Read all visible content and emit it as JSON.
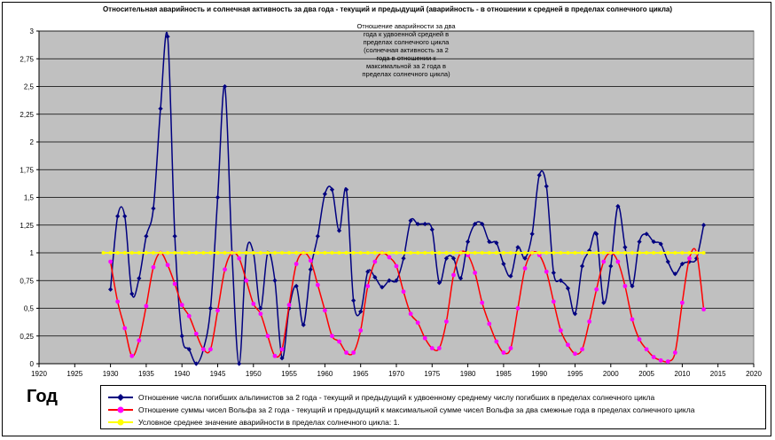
{
  "chart_data": {
    "type": "line",
    "title": "Относительная аварийность и солнечная активность за два года - текущий и предыдущий (аварийность - в отношении к средней в пределах солнечного цикла)",
    "annotation": "Отношение аварийности за два года к удвоенной средней в пределах солнечного цикла (солнечная активность за 2 года в отношении к максимальной за 2 года в пределах солнечного цикла)",
    "xlabel": "Год",
    "ylabel": "",
    "xlim": [
      1920,
      2020
    ],
    "ylim": [
      0,
      3
    ],
    "x_ticks": [
      "1920",
      "1925",
      "1930",
      "1935",
      "1940",
      "1945",
      "1950",
      "1955",
      "1960",
      "1965",
      "1970",
      "1975",
      "1980",
      "1985",
      "1990",
      "1995",
      "2000",
      "2005",
      "2010",
      "2015",
      "2020"
    ],
    "y_ticks": [
      "0",
      "0,25",
      "0,5",
      "0,75",
      "1",
      "1,25",
      "1,5",
      "1,75",
      "2",
      "2,25",
      "2,5",
      "2,75",
      "3"
    ],
    "grid": "horizontal",
    "plot_background": "#c0c0c0",
    "legend_position": "bottom",
    "series": [
      {
        "name": "Отношение числа погибших альпинистов за 2 года - текущий и предыдущий к удвоенному среднему числу погибших в пределах солнечного цикла",
        "color": "#000080",
        "marker": "diamond",
        "x": [
          1930,
          1931,
          1932,
          1933,
          1934,
          1935,
          1936,
          1937,
          1938,
          1939,
          1940,
          1941,
          1942,
          1943,
          1944,
          1945,
          1946,
          1947,
          1948,
          1949,
          1950,
          1951,
          1952,
          1953,
          1954,
          1955,
          1956,
          1957,
          1958,
          1959,
          1960,
          1961,
          1962,
          1963,
          1964,
          1965,
          1966,
          1967,
          1968,
          1969,
          1970,
          1971,
          1972,
          1973,
          1974,
          1975,
          1976,
          1977,
          1978,
          1979,
          1980,
          1981,
          1982,
          1983,
          1984,
          1985,
          1986,
          1987,
          1988,
          1989,
          1990,
          1991,
          1992,
          1993,
          1994,
          1995,
          1996,
          1997,
          1998,
          1999,
          2000,
          2001,
          2002,
          2003,
          2004,
          2005,
          2006,
          2007,
          2008,
          2009,
          2010,
          2011,
          2012,
          2013
        ],
        "y": [
          0.67,
          1.33,
          1.33,
          0.63,
          0.77,
          1.15,
          1.4,
          2.3,
          2.95,
          1.15,
          0.25,
          0.13,
          0.0,
          0.13,
          0.5,
          1.5,
          2.5,
          1.0,
          0.0,
          1.0,
          1.0,
          0.5,
          1.0,
          0.75,
          0.05,
          0.5,
          0.7,
          0.35,
          0.85,
          1.15,
          1.53,
          1.57,
          1.2,
          1.57,
          0.57,
          0.47,
          0.83,
          0.78,
          0.69,
          0.75,
          0.75,
          0.95,
          1.29,
          1.26,
          1.26,
          1.21,
          0.73,
          0.95,
          0.95,
          0.77,
          1.1,
          1.26,
          1.26,
          1.1,
          1.09,
          0.9,
          0.79,
          1.05,
          0.95,
          1.17,
          1.7,
          1.6,
          0.82,
          0.75,
          0.68,
          0.45,
          0.88,
          1.02,
          1.17,
          0.55,
          0.88,
          1.42,
          1.05,
          0.7,
          1.1,
          1.17,
          1.1,
          1.08,
          0.92,
          0.81,
          0.9,
          0.92,
          0.95,
          1.25
        ]
      },
      {
        "name": "Отношение суммы чисел Вольфа за 2 года - текущий и предыдущий к максимальной сумме чисел Вольфа за два смежные года в пределах солнечного цикла",
        "color": "#ff0000",
        "marker": "circle",
        "marker_color": "#ff00ff",
        "x": [
          1930,
          1931,
          1932,
          1933,
          1934,
          1935,
          1936,
          1937,
          1938,
          1939,
          1940,
          1941,
          1942,
          1943,
          1944,
          1945,
          1946,
          1947,
          1948,
          1949,
          1950,
          1951,
          1952,
          1953,
          1954,
          1955,
          1956,
          1957,
          1958,
          1959,
          1960,
          1961,
          1962,
          1963,
          1964,
          1965,
          1966,
          1967,
          1968,
          1969,
          1970,
          1971,
          1972,
          1973,
          1974,
          1975,
          1976,
          1977,
          1978,
          1979,
          1980,
          1981,
          1982,
          1983,
          1984,
          1985,
          1986,
          1987,
          1988,
          1989,
          1990,
          1991,
          1992,
          1993,
          1994,
          1995,
          1996,
          1997,
          1998,
          1999,
          2000,
          2001,
          2002,
          2003,
          2004,
          2005,
          2006,
          2007,
          2008,
          2009,
          2010,
          2011,
          2012,
          2013
        ],
        "y": [
          0.92,
          0.56,
          0.32,
          0.07,
          0.21,
          0.52,
          0.87,
          1.0,
          0.89,
          0.72,
          0.53,
          0.43,
          0.27,
          0.13,
          0.13,
          0.48,
          0.85,
          1.0,
          0.95,
          0.75,
          0.54,
          0.45,
          0.25,
          0.07,
          0.13,
          0.53,
          0.9,
          1.0,
          0.93,
          0.71,
          0.48,
          0.25,
          0.2,
          0.1,
          0.1,
          0.3,
          0.7,
          0.92,
          1.0,
          0.96,
          0.88,
          0.65,
          0.45,
          0.37,
          0.23,
          0.14,
          0.14,
          0.38,
          0.8,
          1.0,
          0.98,
          0.82,
          0.55,
          0.36,
          0.2,
          0.1,
          0.14,
          0.5,
          0.86,
          1.0,
          0.98,
          0.83,
          0.56,
          0.3,
          0.17,
          0.09,
          0.13,
          0.38,
          0.67,
          0.92,
          1.0,
          0.92,
          0.7,
          0.4,
          0.22,
          0.13,
          0.06,
          0.03,
          0.02,
          0.1,
          0.55,
          0.95,
          1.0,
          0.49
        ]
      },
      {
        "name": "Условное среднее значение аварийности в пределах солнечного цикла: 1.",
        "color": "#ffff00",
        "marker": "circle",
        "x": [
          1929,
          1930,
          1931,
          1932,
          1933,
          1934,
          1935,
          1936,
          1937,
          1938,
          1939,
          1940,
          1941,
          1942,
          1943,
          1944,
          1945,
          1946,
          1947,
          1948,
          1949,
          1950,
          1951,
          1952,
          1953,
          1954,
          1955,
          1956,
          1957,
          1958,
          1959,
          1960,
          1961,
          1962,
          1963,
          1964,
          1965,
          1966,
          1967,
          1968,
          1969,
          1970,
          1971,
          1972,
          1973,
          1974,
          1975,
          1976,
          1977,
          1978,
          1979,
          1980,
          1981,
          1982,
          1983,
          1984,
          1985,
          1986,
          1987,
          1988,
          1989,
          1990,
          1991,
          1992,
          1993,
          1994,
          1995,
          1996,
          1997,
          1998,
          1999,
          2000,
          2001,
          2002,
          2003,
          2004,
          2005,
          2006,
          2007,
          2008,
          2009,
          2010,
          2011,
          2012,
          2013
        ],
        "y_constant": 1
      }
    ]
  }
}
